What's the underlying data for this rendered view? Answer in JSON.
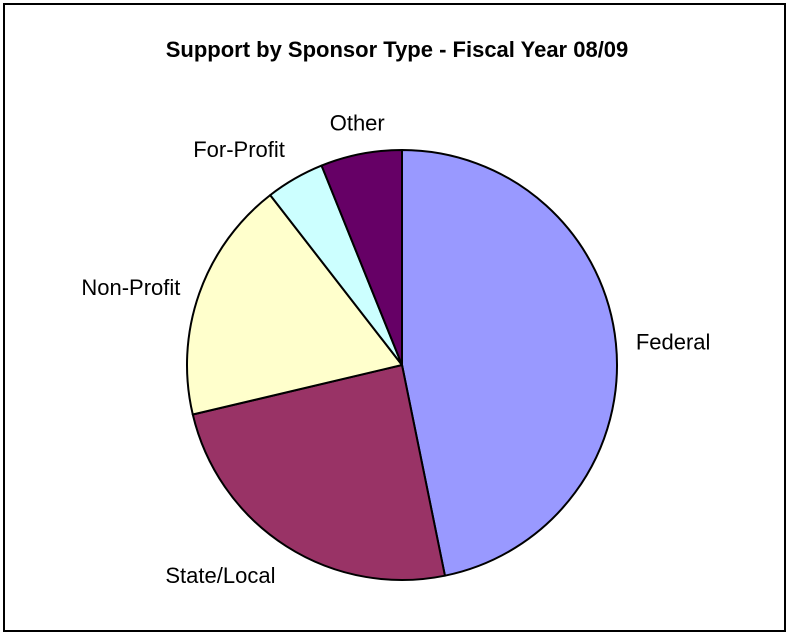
{
  "chart_data": {
    "type": "pie",
    "title": "Support by Sponsor Type - Fiscal Year 08/09",
    "slices": [
      {
        "label": "Federal",
        "value": 46.8,
        "color": "#9999ff"
      },
      {
        "label": "State/Local",
        "value": 24.5,
        "color": "#993366"
      },
      {
        "label": "Non-Profit",
        "value": 18.2,
        "color": "#ffffcc"
      },
      {
        "label": "For-Profit",
        "value": 4.4,
        "color": "#ccffff"
      },
      {
        "label": "Other",
        "value": 6.1,
        "color": "#660066"
      }
    ],
    "start_angle_deg": 0,
    "direction": "clockwise",
    "legend": "none"
  }
}
